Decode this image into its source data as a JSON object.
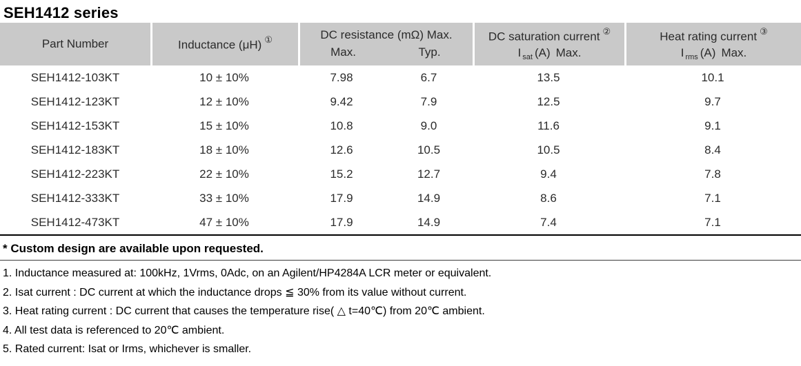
{
  "title": "SEH1412 series",
  "colors": {
    "header_bg": "#c9c9c9",
    "table_text": "#2b2b2b",
    "rule": "#000000"
  },
  "table": {
    "headers": {
      "part_number": "Part Number",
      "inductance": "Inductance (μH)",
      "inductance_note": "①",
      "dc_resistance": "DC resistance (mΩ) Max.",
      "dc_resistance_max": "Max.",
      "dc_resistance_typ": "Typ.",
      "dc_saturation": "DC saturation current",
      "dc_saturation_note": "②",
      "saturation_sub": {
        "symbol": "I",
        "subscript": "sat",
        "unit": "(A)",
        "max": "Max."
      },
      "heat_rating": "Heat rating current",
      "heat_rating_note": "③",
      "heat_sub": {
        "symbol": "I",
        "subscript": "rms",
        "unit": "(A)",
        "max": "Max."
      }
    },
    "rows": [
      {
        "part": "SEH1412-103KT",
        "inductance": "10 ± 10%",
        "r_max": "7.98",
        "r_typ": "6.7",
        "isat": "13.5",
        "irms": "10.1"
      },
      {
        "part": "SEH1412-123KT",
        "inductance": "12 ± 10%",
        "r_max": "9.42",
        "r_typ": "7.9",
        "isat": "12.5",
        "irms": "9.7"
      },
      {
        "part": "SEH1412-153KT",
        "inductance": "15 ± 10%",
        "r_max": "10.8",
        "r_typ": "9.0",
        "isat": "11.6",
        "irms": "9.1"
      },
      {
        "part": "SEH1412-183KT",
        "inductance": "18 ± 10%",
        "r_max": "12.6",
        "r_typ": "10.5",
        "isat": "10.5",
        "irms": "8.4"
      },
      {
        "part": "SEH1412-223KT",
        "inductance": "22 ± 10%",
        "r_max": "15.2",
        "r_typ": "12.7",
        "isat": "9.4",
        "irms": "7.8"
      },
      {
        "part": "SEH1412-333KT",
        "inductance": "33 ± 10%",
        "r_max": "17.9",
        "r_typ": "14.9",
        "isat": "8.6",
        "irms": "7.1"
      },
      {
        "part": "SEH1412-473KT",
        "inductance": "47 ± 10%",
        "r_max": "17.9",
        "r_typ": "14.9",
        "isat": "7.4",
        "irms": "7.1"
      }
    ]
  },
  "footnotes": {
    "custom": "* Custom design are available upon requested.",
    "notes": [
      "1. Inductance measured at: 100kHz, 1Vrms, 0Adc, on an Agilent/HP4284A LCR meter or equivalent.",
      "2. Isat current : DC current at which the inductance drops ≦ 30% from its value without current.",
      "3. Heat rating current : DC current that causes the temperature rise( △ t=40℃) from 20℃ ambient.",
      "4. All test data is referenced to 20℃ ambient.",
      "5. Rated current: Isat or Irms, whichever is smaller."
    ]
  }
}
